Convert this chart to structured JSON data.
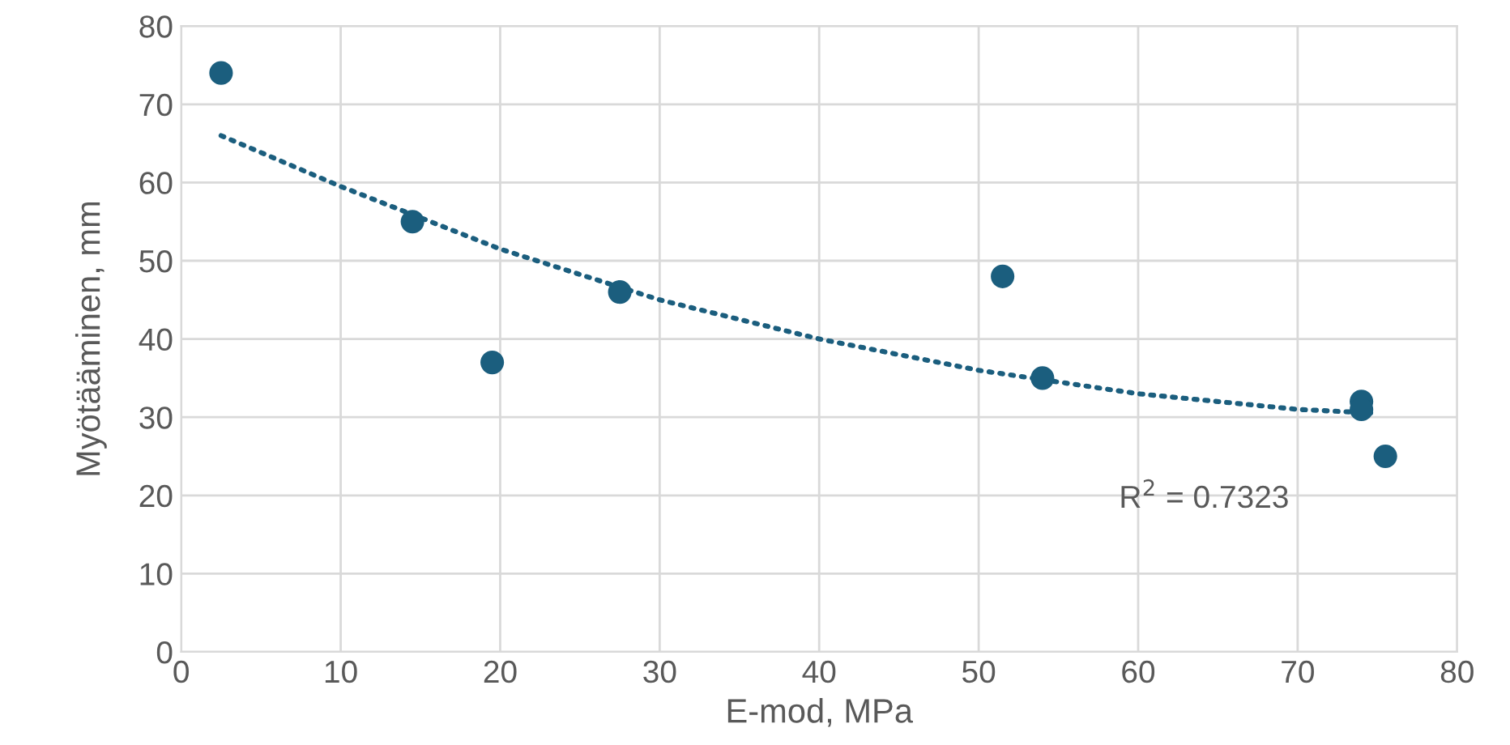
{
  "chart_data": {
    "type": "scatter",
    "xlabel": "E-mod, MPa",
    "ylabel": "Myötääminen, mm",
    "xlim": [
      0,
      80
    ],
    "xticks": [
      0,
      10,
      20,
      30,
      40,
      50,
      60,
      70,
      80
    ],
    "ylim": [
      0,
      80
    ],
    "yticks": [
      0,
      10,
      20,
      30,
      40,
      50,
      60,
      70,
      80
    ],
    "grid": true,
    "marker": "circle",
    "series": [
      {
        "color": "#1b5e7e",
        "x": [
          2.5,
          14.5,
          19.5,
          27.5,
          51.5,
          54,
          74,
          74,
          75.5
        ],
        "values": [
          74,
          55,
          37,
          46,
          48,
          35,
          32,
          31,
          25
        ]
      },
      {
        "type": "line",
        "color": "#1b5e7e",
        "line_style": "dotted",
        "marker": "none",
        "x": [
          2.5,
          10,
          20,
          30,
          40,
          50,
          60,
          70,
          75
        ],
        "values": [
          66,
          59.5,
          51.5,
          45,
          40,
          36,
          33,
          31,
          30.5
        ]
      }
    ],
    "annotations": [
      "R$^{2}$ = 0.7323"
    ]
  }
}
